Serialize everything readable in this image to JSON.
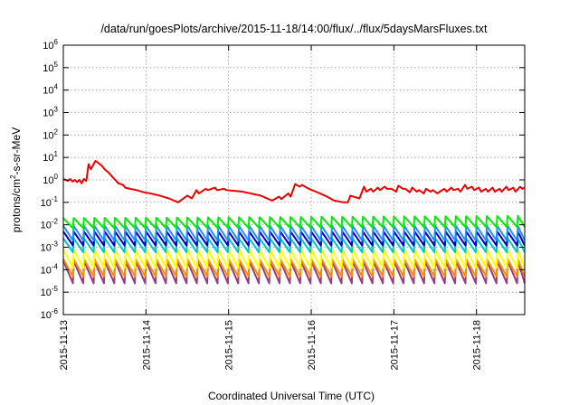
{
  "chart_data": {
    "type": "line",
    "title": "/data/run/goesPlots/archive/2015-11-18/14:00/flux/../flux/5daysMarsFluxes.txt",
    "xlabel": "Coordinated Universal Time (UTC)",
    "ylabel": "protons/cm2-s-sr-MeV",
    "ylabel_parts": {
      "pre": "protons/cm",
      "sup": "2",
      "post": "-s-sr-MeV"
    },
    "yscale": "log",
    "ylim": [
      1e-06,
      1000000.0
    ],
    "xlim": [
      "2015-11-13T00:00",
      "2015-11-18T14:00"
    ],
    "grid": true,
    "legend": "none",
    "x_ticks": [
      "2015-11-13",
      "2015-11-14",
      "2015-11-15",
      "2015-11-16",
      "2015-11-17",
      "2015-11-18"
    ],
    "y_ticks": [
      {
        "value": 1e-06,
        "base": "10",
        "exp": "-6"
      },
      {
        "value": 1e-05,
        "base": "10",
        "exp": "-5"
      },
      {
        "value": 0.0001,
        "base": "10",
        "exp": "-4"
      },
      {
        "value": 0.001,
        "base": "10",
        "exp": "-3"
      },
      {
        "value": 0.01,
        "base": "10",
        "exp": "-2"
      },
      {
        "value": 0.1,
        "base": "10",
        "exp": "-1"
      },
      {
        "value": 1.0,
        "base": "10",
        "exp": "0"
      },
      {
        "value": 10.0,
        "base": "10",
        "exp": "1"
      },
      {
        "value": 100.0,
        "base": "10",
        "exp": "2"
      },
      {
        "value": 1000.0,
        "base": "10",
        "exp": "3"
      },
      {
        "value": 10000.0,
        "base": "10",
        "exp": "4"
      },
      {
        "value": 100000.0,
        "base": "10",
        "exp": "5"
      },
      {
        "value": 1000000.0,
        "base": "10",
        "exp": "6"
      }
    ],
    "series": [
      {
        "color": "#ee0000",
        "x": [
          "2015-11-13T00:00",
          "2015-11-13T01:20",
          "2015-11-13T02:00",
          "2015-11-13T02:40",
          "2015-11-13T03:20",
          "2015-11-13T04:00",
          "2015-11-13T04:40",
          "2015-11-13T05:20",
          "2015-11-13T06:00",
          "2015-11-13T06:40",
          "2015-11-13T07:20",
          "2015-11-13T08:00",
          "2015-11-13T09:20",
          "2015-11-13T10:00",
          "2015-11-13T11:20",
          "2015-11-13T12:00",
          "2015-11-13T13:20",
          "2015-11-13T14:00",
          "2015-11-13T15:20",
          "2015-11-13T16:00",
          "2015-11-13T17:20",
          "2015-11-13T18:00",
          "2015-11-13T19:20",
          "2015-11-13T21:20",
          "2015-11-13T23:20",
          "2015-11-14T01:20",
          "2015-11-14T04:00",
          "2015-11-14T06:40",
          "2015-11-14T09:20",
          "2015-11-14T12:00",
          "2015-11-14T13:20",
          "2015-11-14T14:40",
          "2015-11-14T15:20",
          "2015-11-14T17:20",
          "2015-11-14T18:00",
          "2015-11-14T20:00",
          "2015-11-14T20:40",
          "2015-11-14T22:40",
          "2015-11-14T23:20",
          "2015-11-15T04:00",
          "2015-11-15T09:20",
          "2015-11-15T12:40",
          "2015-11-15T14:40",
          "2015-11-15T15:20",
          "2015-11-15T17:20",
          "2015-11-15T18:00",
          "2015-11-15T19:20",
          "2015-11-15T20:40",
          "2015-11-15T21:20",
          "2015-11-15T22:40",
          "2015-11-15T23:20",
          "2015-11-16T01:20",
          "2015-11-16T04:00",
          "2015-11-16T06:40",
          "2015-11-16T09:20",
          "2015-11-16T10:40",
          "2015-11-16T11:20",
          "2015-11-16T14:00",
          "2015-11-16T15:20",
          "2015-11-16T16:00",
          "2015-11-16T17:20",
          "2015-11-16T18:00",
          "2015-11-16T19:20",
          "2015-11-16T20:00",
          "2015-11-16T21:20",
          "2015-11-16T22:00",
          "2015-11-16T23:20",
          "2015-11-17T00:40",
          "2015-11-17T01:20",
          "2015-11-17T02:40",
          "2015-11-17T03:20",
          "2015-11-17T04:40",
          "2015-11-17T05:20",
          "2015-11-17T06:40",
          "2015-11-17T07:20",
          "2015-11-17T08:40",
          "2015-11-17T09:20",
          "2015-11-17T10:40",
          "2015-11-17T11:20",
          "2015-11-17T12:40",
          "2015-11-17T13:20",
          "2015-11-17T14:40",
          "2015-11-17T15:20",
          "2015-11-17T16:40",
          "2015-11-17T17:20",
          "2015-11-17T18:40",
          "2015-11-17T19:20",
          "2015-11-17T20:40",
          "2015-11-17T21:20",
          "2015-11-17T22:40",
          "2015-11-17T23:20",
          "2015-11-18T00:40",
          "2015-11-18T01:20",
          "2015-11-18T02:40",
          "2015-11-18T03:20",
          "2015-11-18T04:40",
          "2015-11-18T05:20",
          "2015-11-18T06:40",
          "2015-11-18T07:20",
          "2015-11-18T08:40",
          "2015-11-18T09:20",
          "2015-11-18T10:40",
          "2015-11-18T11:20",
          "2015-11-18T12:40",
          "2015-11-18T13:20",
          "2015-11-18T14:00"
        ],
        "y": [
          1.1,
          0.9,
          1.1,
          0.85,
          1.0,
          0.8,
          1.0,
          0.7,
          1.1,
          0.9,
          5.0,
          3.0,
          7.0,
          6.0,
          4.0,
          3.0,
          2.0,
          1.5,
          0.9,
          0.7,
          0.6,
          0.45,
          0.4,
          0.35,
          0.28,
          0.25,
          0.2,
          0.15,
          0.1,
          0.2,
          0.15,
          0.35,
          0.25,
          0.4,
          0.35,
          0.45,
          0.35,
          0.4,
          0.35,
          0.3,
          0.2,
          0.12,
          0.18,
          0.14,
          0.25,
          0.18,
          0.65,
          0.5,
          0.6,
          0.45,
          0.4,
          0.3,
          0.2,
          0.12,
          0.1,
          0.1,
          0.2,
          0.15,
          0.5,
          0.3,
          0.4,
          0.3,
          0.45,
          0.35,
          0.5,
          0.4,
          0.4,
          0.3,
          0.55,
          0.4,
          0.4,
          0.28,
          0.45,
          0.3,
          0.35,
          0.25,
          0.4,
          0.3,
          0.35,
          0.25,
          0.3,
          0.4,
          0.3,
          0.45,
          0.35,
          0.4,
          0.3,
          0.6,
          0.4,
          0.5,
          0.35,
          0.45,
          0.3,
          0.4,
          0.3,
          0.45,
          0.3,
          0.4,
          0.3,
          0.5,
          0.35,
          0.45,
          0.3,
          0.5,
          0.4,
          0.45
        ]
      },
      {
        "color": "#00ee00",
        "envelope": {
          "x": [
            "2015-11-13T00:00",
            "2015-11-18T14:00"
          ],
          "peak": [
            0.02,
            0.025
          ],
          "trough": [
            0.007,
            0.008
          ]
        }
      },
      {
        "color": "#1e90ff",
        "envelope": {
          "x": [
            "2015-11-13T00:00",
            "2015-11-18T14:00"
          ],
          "peak": [
            0.009,
            0.009
          ],
          "trough": [
            0.002,
            0.002
          ]
        }
      },
      {
        "color": "#0000cc",
        "envelope": {
          "x": [
            "2015-11-13T00:00",
            "2015-11-18T14:00"
          ],
          "peak": [
            0.005,
            0.005
          ],
          "trough": [
            0.0012,
            0.0012
          ]
        }
      },
      {
        "color": "#00c8c8",
        "envelope": {
          "x": [
            "2015-11-13T00:00",
            "2015-11-18T14:00"
          ],
          "peak": [
            0.0025,
            0.0025
          ],
          "trough": [
            0.0006,
            0.0006
          ]
        }
      },
      {
        "color": "#ffff00",
        "envelope": {
          "x": [
            "2015-11-13T00:00",
            "2015-11-18T14:00"
          ],
          "peak": [
            0.0008,
            0.0008
          ],
          "trough": [
            0.00012,
            0.00012
          ]
        }
      },
      {
        "color": "#ff8c00",
        "envelope": {
          "x": [
            "2015-11-13T00:00",
            "2015-11-18T14:00"
          ],
          "peak": [
            0.0003,
            0.0003
          ],
          "trough": [
            5e-05,
            5e-05
          ]
        }
      },
      {
        "color": "#9b3d7a",
        "envelope": {
          "x": [
            "2015-11-13T00:00",
            "2015-11-18T14:00"
          ],
          "peak": [
            0.00025,
            0.00025
          ],
          "trough": [
            2.5e-05,
            2.5e-05
          ]
        }
      }
    ]
  }
}
